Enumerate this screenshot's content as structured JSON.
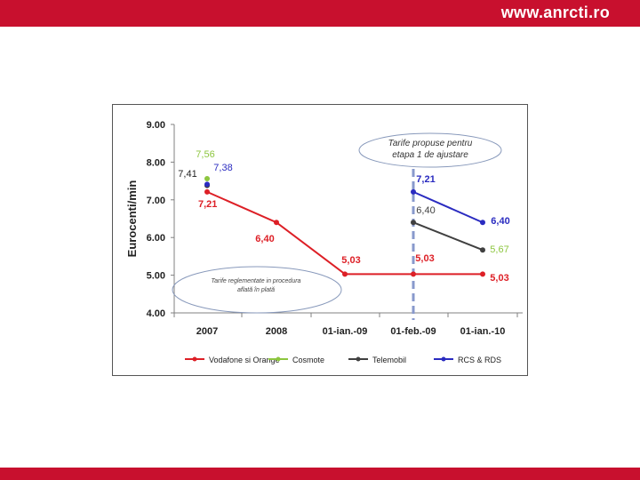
{
  "header": {
    "site": "www.anrcti.ro"
  },
  "colors": {
    "brand": "#c8102e",
    "vodafone": "#dd1f26",
    "cosmote": "#8dc63f",
    "telemobil": "#404040",
    "rcs": "#2a2bc0"
  },
  "chart_data": {
    "type": "line",
    "ylabel": "Eurocenti/min",
    "ylim": [
      4.0,
      9.0
    ],
    "yticks": [
      "4.00",
      "5.00",
      "6.00",
      "7.00",
      "8.00",
      "9.00"
    ],
    "categories": [
      "2007",
      "2008",
      "01-ian.-09",
      "01-feb.-09",
      "01-ian.-10"
    ],
    "legend_position": "bottom",
    "series": [
      {
        "name": "Vodafone si Orange",
        "values": [
          7.21,
          6.4,
          5.03,
          5.03,
          5.03
        ],
        "labels": [
          "7,21",
          "6,40",
          "5,03",
          "5,03",
          "5,03"
        ]
      },
      {
        "name": "Cosmote",
        "values": [
          7.56,
          null,
          null,
          null,
          5.67
        ],
        "labels": [
          "7,56",
          "",
          "",
          "",
          "5,67"
        ]
      },
      {
        "name": "Telemobil",
        "values": [
          7.38,
          null,
          null,
          6.4,
          5.67
        ],
        "labels": [
          "7,38",
          "",
          "",
          "6,40",
          ""
        ]
      },
      {
        "name": "RCS & RDS",
        "values": [
          7.41,
          null,
          null,
          7.21,
          6.4
        ],
        "labels": [
          "7,41",
          "",
          "",
          "7,21",
          "6,40"
        ]
      }
    ],
    "annotations": [
      "Tarife propuse pentru etapa 1 de ajustare",
      "Tarife reglementate in procedura aflată în plată"
    ]
  }
}
